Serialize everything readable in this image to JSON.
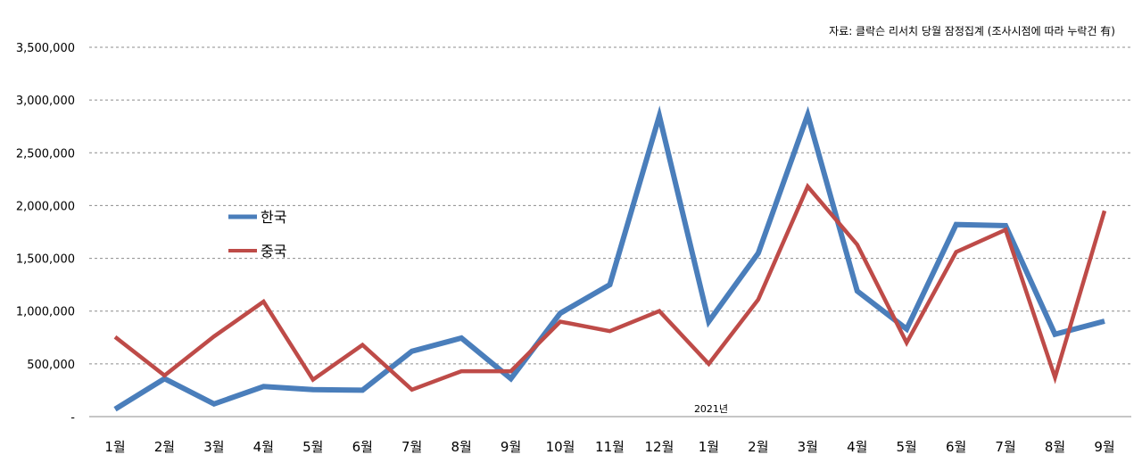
{
  "chart_data": {
    "type": "line",
    "title": "",
    "source_note": "자료: 클락슨 리서치 당월 잠정집계 (조사시점에 따라 누락건 有)",
    "year_annotation": "2021년",
    "xlabel": "",
    "ylabel": "",
    "categories": [
      "1월",
      "2월",
      "3월",
      "4월",
      "5월",
      "6월",
      "7월",
      "8월",
      "9월",
      "10월",
      "11월",
      "12월",
      "1월",
      "2월",
      "3월",
      "4월",
      "5월",
      "6월",
      "7월",
      "8월",
      "9월"
    ],
    "ylim": [
      0,
      3500000
    ],
    "y_ticks": [
      0,
      500000,
      1000000,
      1500000,
      2000000,
      2500000,
      3000000,
      3500000
    ],
    "y_tick_labels": [
      "-",
      "500,000",
      "1,000,000",
      "1,500,000",
      "2,000,000",
      "2,500,000",
      "3,000,000",
      "3,500,000"
    ],
    "grid": true,
    "legend_position": "left-center",
    "series": [
      {
        "name": "한국",
        "color": "#4a7ebb",
        "values": [
          70000,
          360000,
          120000,
          285000,
          255000,
          250000,
          620000,
          745000,
          360000,
          980000,
          1250000,
          2850000,
          900000,
          1550000,
          2860000,
          1190000,
          830000,
          1820000,
          1810000,
          780000,
          905000
        ]
      },
      {
        "name": "중국",
        "color": "#be4b48",
        "values": [
          755000,
          390000,
          760000,
          1090000,
          350000,
          680000,
          255000,
          430000,
          430000,
          900000,
          810000,
          1000000,
          500000,
          1110000,
          2180000,
          1630000,
          700000,
          1560000,
          1770000,
          370000,
          1950000
        ]
      }
    ]
  }
}
